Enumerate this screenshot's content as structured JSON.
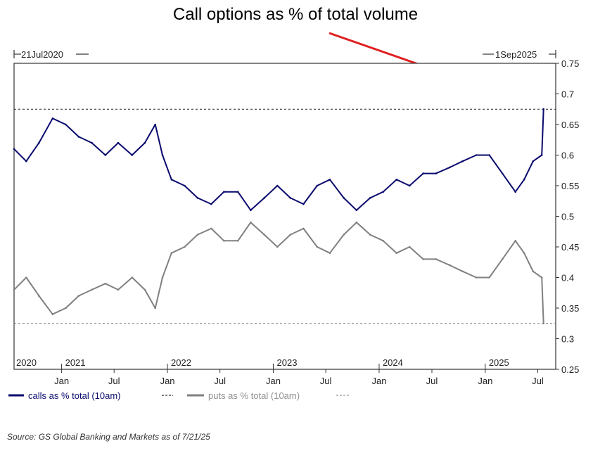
{
  "chart_data": {
    "type": "line",
    "title": "Call options as % of total volume",
    "x_range": [
      "2020-07-21",
      "2025-09-01"
    ],
    "range_labels": {
      "start": "21Jul2020",
      "end": "1Sep2025"
    },
    "ylim": [
      0.25,
      0.75
    ],
    "y_ticks": [
      "0.25",
      "0.3",
      "0.35",
      "0.4",
      "0.45",
      "0.5",
      "0.55",
      "0.6",
      "0.65",
      "0.7",
      "0.75"
    ],
    "x_tick_labels": [
      {
        "label": "Jan",
        "date": "2021-01-01"
      },
      {
        "label": "Jul",
        "date": "2021-07-01"
      },
      {
        "label": "Jan",
        "date": "2022-01-01"
      },
      {
        "label": "Jul",
        "date": "2022-07-01"
      },
      {
        "label": "Jan",
        "date": "2023-01-01"
      },
      {
        "label": "Jul",
        "date": "2023-07-01"
      },
      {
        "label": "Jan",
        "date": "2024-01-01"
      },
      {
        "label": "Jul",
        "date": "2024-07-01"
      },
      {
        "label": "Jan",
        "date": "2025-01-01"
      },
      {
        "label": "Jul",
        "date": "2025-07-01"
      }
    ],
    "year_labels": [
      {
        "label": "2020",
        "date": "2020-07-21"
      },
      {
        "label": "2021",
        "date": "2021-01-01"
      },
      {
        "label": "2022",
        "date": "2022-01-01"
      },
      {
        "label": "2023",
        "date": "2023-01-01"
      },
      {
        "label": "2024",
        "date": "2024-01-01"
      },
      {
        "label": "2025",
        "date": "2025-01-01"
      }
    ],
    "series": [
      {
        "name": "calls as % total (10am)",
        "color": "#0a0a6e",
        "reference_level": 0.675,
        "points": [
          [
            "2020-07-21",
            0.61
          ],
          [
            "2020-09-01",
            0.59
          ],
          [
            "2020-10-15",
            0.62
          ],
          [
            "2020-12-01",
            0.66
          ],
          [
            "2021-01-15",
            0.65
          ],
          [
            "2021-03-01",
            0.63
          ],
          [
            "2021-04-15",
            0.62
          ],
          [
            "2021-06-01",
            0.6
          ],
          [
            "2021-07-15",
            0.62
          ],
          [
            "2021-09-01",
            0.6
          ],
          [
            "2021-10-15",
            0.62
          ],
          [
            "2021-11-20",
            0.65
          ],
          [
            "2021-12-15",
            0.6
          ],
          [
            "2022-01-15",
            0.56
          ],
          [
            "2022-03-01",
            0.55
          ],
          [
            "2022-04-15",
            0.53
          ],
          [
            "2022-06-01",
            0.52
          ],
          [
            "2022-07-15",
            0.54
          ],
          [
            "2022-09-01",
            0.54
          ],
          [
            "2022-10-15",
            0.51
          ],
          [
            "2022-12-01",
            0.53
          ],
          [
            "2023-01-15",
            0.55
          ],
          [
            "2023-03-01",
            0.53
          ],
          [
            "2023-04-15",
            0.52
          ],
          [
            "2023-06-01",
            0.55
          ],
          [
            "2023-07-15",
            0.56
          ],
          [
            "2023-09-01",
            0.53
          ],
          [
            "2023-10-15",
            0.51
          ],
          [
            "2023-12-01",
            0.53
          ],
          [
            "2024-01-15",
            0.54
          ],
          [
            "2024-03-01",
            0.56
          ],
          [
            "2024-04-15",
            0.55
          ],
          [
            "2024-06-01",
            0.57
          ],
          [
            "2024-07-15",
            0.57
          ],
          [
            "2024-09-01",
            0.58
          ],
          [
            "2024-10-15",
            0.59
          ],
          [
            "2024-12-01",
            0.6
          ],
          [
            "2025-01-15",
            0.6
          ],
          [
            "2025-03-01",
            0.57
          ],
          [
            "2025-04-15",
            0.54
          ],
          [
            "2025-05-15",
            0.56
          ],
          [
            "2025-06-15",
            0.59
          ],
          [
            "2025-07-15",
            0.6
          ],
          [
            "2025-07-21",
            0.675
          ]
        ]
      },
      {
        "name": "puts as % total (10am)",
        "color": "#808080",
        "reference_level": 0.325,
        "points": [
          [
            "2020-07-21",
            0.38
          ],
          [
            "2020-09-01",
            0.4
          ],
          [
            "2020-10-15",
            0.37
          ],
          [
            "2020-12-01",
            0.34
          ],
          [
            "2021-01-15",
            0.35
          ],
          [
            "2021-03-01",
            0.37
          ],
          [
            "2021-04-15",
            0.38
          ],
          [
            "2021-06-01",
            0.39
          ],
          [
            "2021-07-15",
            0.38
          ],
          [
            "2021-09-01",
            0.4
          ],
          [
            "2021-10-15",
            0.38
          ],
          [
            "2021-11-20",
            0.35
          ],
          [
            "2021-12-15",
            0.4
          ],
          [
            "2022-01-15",
            0.44
          ],
          [
            "2022-03-01",
            0.45
          ],
          [
            "2022-04-15",
            0.47
          ],
          [
            "2022-06-01",
            0.48
          ],
          [
            "2022-07-15",
            0.46
          ],
          [
            "2022-09-01",
            0.46
          ],
          [
            "2022-10-15",
            0.49
          ],
          [
            "2022-12-01",
            0.47
          ],
          [
            "2023-01-15",
            0.45
          ],
          [
            "2023-03-01",
            0.47
          ],
          [
            "2023-04-15",
            0.48
          ],
          [
            "2023-06-01",
            0.45
          ],
          [
            "2023-07-15",
            0.44
          ],
          [
            "2023-09-01",
            0.47
          ],
          [
            "2023-10-15",
            0.49
          ],
          [
            "2023-12-01",
            0.47
          ],
          [
            "2024-01-15",
            0.46
          ],
          [
            "2024-03-01",
            0.44
          ],
          [
            "2024-04-15",
            0.45
          ],
          [
            "2024-06-01",
            0.43
          ],
          [
            "2024-07-15",
            0.43
          ],
          [
            "2024-09-01",
            0.42
          ],
          [
            "2024-10-15",
            0.41
          ],
          [
            "2024-12-01",
            0.4
          ],
          [
            "2025-01-15",
            0.4
          ],
          [
            "2025-03-01",
            0.43
          ],
          [
            "2025-04-15",
            0.46
          ],
          [
            "2025-05-15",
            0.44
          ],
          [
            "2025-06-15",
            0.41
          ],
          [
            "2025-07-15",
            0.4
          ],
          [
            "2025-07-21",
            0.325
          ]
        ]
      }
    ],
    "legend_placement": "bottom-left",
    "annotation_arrow_color": "#e02020"
  },
  "source": "Source: GS Global Banking and Markets as of 7/21/25"
}
